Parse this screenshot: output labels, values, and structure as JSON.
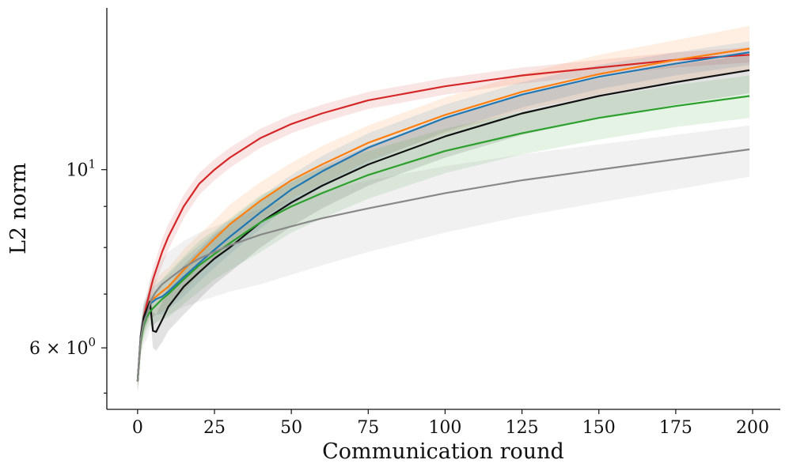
{
  "chart_data": {
    "type": "line",
    "title": "",
    "xlabel": "Communication round",
    "ylabel": "L2 norm",
    "xlim": [
      -10,
      209
    ],
    "ylim": [
      5.03,
      15.9
    ],
    "yscale": "log",
    "grid": false,
    "x_ticks": [
      0,
      25,
      50,
      75,
      100,
      125,
      150,
      175,
      200
    ],
    "x_tick_labels": [
      "0",
      "25",
      "50",
      "75",
      "100",
      "125",
      "150",
      "175",
      "200"
    ],
    "y_major_ticks": [
      {
        "value": 6,
        "base": "6 × 10",
        "exp": "0"
      },
      {
        "value": 10,
        "base": "10",
        "exp": "1"
      }
    ],
    "y_minor_ticks": [
      5.27,
      7,
      8,
      9
    ],
    "x": [
      0,
      1,
      2,
      3,
      4,
      5,
      6,
      8,
      10,
      15,
      20,
      25,
      30,
      40,
      50,
      60,
      75,
      100,
      125,
      150,
      175,
      199
    ],
    "series": [
      {
        "color": "#d62728",
        "values": [
          5.45,
          6.1,
          6.55,
          6.8,
          7.05,
          7.3,
          7.5,
          7.9,
          8.25,
          9.0,
          9.6,
          10.0,
          10.35,
          10.95,
          11.4,
          11.75,
          12.2,
          12.7,
          13.1,
          13.4,
          13.7,
          13.9
        ],
        "lower": [
          5.35,
          5.95,
          6.4,
          6.65,
          6.85,
          7.05,
          7.25,
          7.6,
          7.95,
          8.7,
          9.3,
          9.7,
          10.05,
          10.65,
          11.1,
          11.45,
          11.9,
          12.4,
          12.8,
          13.1,
          13.4,
          13.6
        ],
        "upper": [
          5.55,
          6.25,
          6.7,
          6.95,
          7.25,
          7.55,
          7.75,
          8.2,
          8.55,
          9.3,
          9.9,
          10.3,
          10.65,
          11.25,
          11.7,
          12.05,
          12.5,
          13.0,
          13.4,
          13.7,
          14.0,
          14.2
        ]
      },
      {
        "color": "#ff7f0e",
        "values": [
          5.45,
          6.15,
          6.5,
          6.65,
          6.85,
          6.9,
          6.95,
          7.05,
          7.15,
          7.5,
          7.85,
          8.2,
          8.55,
          9.15,
          9.7,
          10.15,
          10.8,
          11.7,
          12.5,
          13.15,
          13.7,
          14.15
        ],
        "lower": [
          5.3,
          5.95,
          6.25,
          6.4,
          6.5,
          6.55,
          6.6,
          6.65,
          6.75,
          7.05,
          7.4,
          7.75,
          8.05,
          8.65,
          9.2,
          9.6,
          10.25,
          11.1,
          11.85,
          12.4,
          12.9,
          13.3
        ],
        "upper": [
          5.6,
          6.35,
          6.75,
          6.9,
          7.2,
          7.25,
          7.3,
          7.45,
          7.55,
          7.95,
          8.3,
          8.65,
          9.05,
          9.65,
          10.2,
          10.7,
          11.35,
          12.3,
          13.15,
          13.9,
          14.5,
          15.1
        ]
      },
      {
        "color": "#1f77b4",
        "values": [
          5.45,
          6.15,
          6.5,
          6.65,
          6.8,
          6.85,
          6.9,
          6.95,
          7.05,
          7.35,
          7.65,
          7.95,
          8.25,
          8.85,
          9.45,
          9.95,
          10.65,
          11.6,
          12.4,
          13.05,
          13.55,
          14.0
        ],
        "lower": [
          5.3,
          5.95,
          6.25,
          6.4,
          6.55,
          6.55,
          6.6,
          6.6,
          6.7,
          6.95,
          7.25,
          7.55,
          7.85,
          8.45,
          9.05,
          9.5,
          10.2,
          11.15,
          11.95,
          12.6,
          13.1,
          13.5
        ],
        "upper": [
          5.6,
          6.35,
          6.75,
          6.9,
          7.05,
          7.15,
          7.2,
          7.3,
          7.4,
          7.75,
          8.05,
          8.35,
          8.65,
          9.25,
          9.85,
          10.4,
          11.1,
          12.05,
          12.85,
          13.5,
          14.0,
          14.45
        ]
      },
      {
        "color": "#111111",
        "values": [
          5.45,
          6.2,
          6.55,
          6.7,
          6.85,
          6.3,
          6.28,
          6.5,
          6.75,
          7.15,
          7.45,
          7.75,
          8.0,
          8.6,
          9.1,
          9.55,
          10.15,
          11.0,
          11.75,
          12.35,
          12.85,
          13.3
        ],
        "lower": [
          5.3,
          6.0,
          6.3,
          6.45,
          6.6,
          6.0,
          5.95,
          6.1,
          6.3,
          6.6,
          6.9,
          7.2,
          7.45,
          8.0,
          8.5,
          8.95,
          9.55,
          10.35,
          11.05,
          11.6,
          12.05,
          12.45
        ],
        "upper": [
          5.6,
          6.4,
          6.8,
          6.95,
          7.1,
          6.65,
          6.6,
          6.85,
          7.15,
          7.6,
          7.95,
          8.3,
          8.55,
          9.15,
          9.65,
          10.1,
          10.7,
          11.6,
          12.4,
          13.0,
          13.5,
          13.9
        ]
      },
      {
        "color": "#2ca02c",
        "values": [
          5.45,
          6.1,
          6.4,
          6.55,
          6.65,
          6.72,
          6.78,
          6.9,
          7.0,
          7.3,
          7.6,
          7.85,
          8.1,
          8.6,
          9.0,
          9.35,
          9.85,
          10.55,
          11.1,
          11.6,
          12.0,
          12.35
        ],
        "lower": [
          5.3,
          5.9,
          6.15,
          6.3,
          6.4,
          6.4,
          6.45,
          6.5,
          6.55,
          6.8,
          7.05,
          7.3,
          7.5,
          7.9,
          8.35,
          8.7,
          9.2,
          9.9,
          10.45,
          10.9,
          11.3,
          11.6
        ],
        "upper": [
          5.6,
          6.3,
          6.65,
          6.8,
          6.9,
          7.05,
          7.1,
          7.3,
          7.45,
          7.8,
          8.15,
          8.4,
          8.7,
          9.3,
          9.7,
          10.05,
          10.55,
          11.25,
          11.8,
          12.3,
          12.75,
          13.1
        ]
      },
      {
        "color": "#888888",
        "values": [
          5.45,
          6.15,
          6.45,
          6.6,
          6.8,
          6.95,
          7.05,
          7.2,
          7.3,
          7.55,
          7.75,
          7.9,
          8.05,
          8.3,
          8.5,
          8.7,
          8.95,
          9.35,
          9.7,
          10.0,
          10.3,
          10.6
        ],
        "lower": [
          5.25,
          5.85,
          6.05,
          6.15,
          6.3,
          6.4,
          6.45,
          6.55,
          6.6,
          6.75,
          6.85,
          6.95,
          7.05,
          7.2,
          7.4,
          7.6,
          7.9,
          8.35,
          8.75,
          9.1,
          9.45,
          9.8
        ],
        "upper": [
          5.65,
          6.45,
          6.85,
          7.05,
          7.3,
          7.45,
          7.55,
          7.75,
          7.9,
          8.15,
          8.35,
          8.5,
          8.65,
          8.95,
          9.2,
          9.4,
          9.7,
          10.1,
          10.45,
          10.75,
          11.05,
          11.35
        ]
      }
    ]
  }
}
